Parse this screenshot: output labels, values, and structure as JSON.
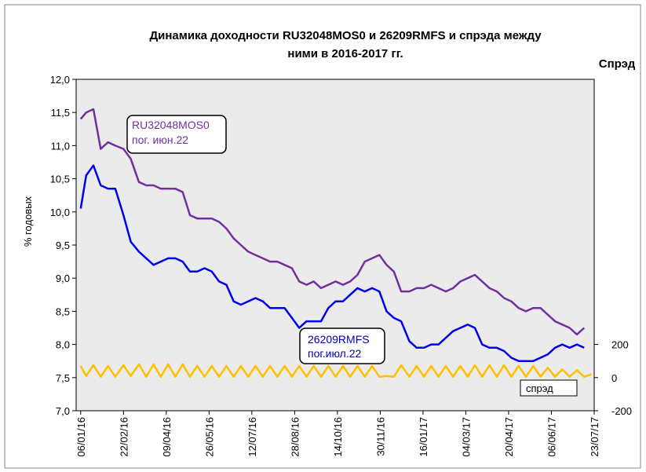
{
  "chart_data": {
    "type": "line",
    "title": [
      "Динамика доходности RU32048MOS0 и 26209RMFS и спрэда между",
      "ними в 2016-2017 гг."
    ],
    "y2_title": "Спрэд",
    "ylabel": "% годовых",
    "x": [
      "2016-01-06",
      "2016-01-12",
      "2016-01-20",
      "2016-01-28",
      "2016-02-05",
      "2016-02-13",
      "2016-02-22",
      "2016-03-01",
      "2016-03-10",
      "2016-03-18",
      "2016-03-26",
      "2016-04-03",
      "2016-04-11",
      "2016-04-19",
      "2016-04-27",
      "2016-05-05",
      "2016-05-13",
      "2016-05-21",
      "2016-05-29",
      "2016-06-06",
      "2016-06-14",
      "2016-06-22",
      "2016-06-30",
      "2016-07-08",
      "2016-07-16",
      "2016-07-24",
      "2016-08-01",
      "2016-08-09",
      "2016-08-17",
      "2016-08-25",
      "2016-09-02",
      "2016-09-10",
      "2016-09-18",
      "2016-09-26",
      "2016-10-04",
      "2016-10-12",
      "2016-10-20",
      "2016-10-28",
      "2016-11-05",
      "2016-11-13",
      "2016-11-21",
      "2016-11-29",
      "2016-12-07",
      "2016-12-15",
      "2016-12-23",
      "2017-01-01",
      "2017-01-09",
      "2017-01-17",
      "2017-01-25",
      "2017-02-02",
      "2017-02-10",
      "2017-02-18",
      "2017-02-26",
      "2017-03-06",
      "2017-03-14",
      "2017-03-22",
      "2017-03-30",
      "2017-04-07",
      "2017-04-15",
      "2017-04-23",
      "2017-05-01",
      "2017-05-09",
      "2017-05-17",
      "2017-05-25",
      "2017-06-02",
      "2017-06-10",
      "2017-06-18",
      "2017-06-26",
      "2017-07-04",
      "2017-07-12",
      "2017-07-20"
    ],
    "series": [
      {
        "name": "RU32048MOS0",
        "annotation": "пог. июн.22",
        "color": "#7030a0",
        "values": [
          11.4,
          11.5,
          11.55,
          10.95,
          11.05,
          11.0,
          10.95,
          10.8,
          10.45,
          10.4,
          10.4,
          10.35,
          10.35,
          10.35,
          10.3,
          9.95,
          9.9,
          9.9,
          9.9,
          9.85,
          9.75,
          9.6,
          9.5,
          9.4,
          9.35,
          9.3,
          9.25,
          9.25,
          9.2,
          9.15,
          8.95,
          8.9,
          8.95,
          8.85,
          8.9,
          8.95,
          8.9,
          8.95,
          9.05,
          9.25,
          9.3,
          9.35,
          9.2,
          9.1,
          8.8,
          8.8,
          8.85,
          8.85,
          8.9,
          8.85,
          8.8,
          8.85,
          8.95,
          9.0,
          9.05,
          8.95,
          8.85,
          8.8,
          8.7,
          8.65,
          8.55,
          8.5,
          8.55,
          8.55,
          8.45,
          8.35,
          8.3,
          8.25,
          8.15,
          8.25,
          null
        ]
      },
      {
        "name": "26209RMFS",
        "annotation": "пог.июл.22",
        "color": "#0000ee",
        "values": [
          10.05,
          10.55,
          10.7,
          10.4,
          10.35,
          10.35,
          9.95,
          9.55,
          9.4,
          9.3,
          9.2,
          9.25,
          9.3,
          9.3,
          9.25,
          9.1,
          9.1,
          9.15,
          9.1,
          8.95,
          8.9,
          8.65,
          8.6,
          8.65,
          8.7,
          8.65,
          8.55,
          8.55,
          8.55,
          8.4,
          8.25,
          8.35,
          8.35,
          8.35,
          8.55,
          8.65,
          8.65,
          8.75,
          8.85,
          8.8,
          8.85,
          8.8,
          8.5,
          8.4,
          8.35,
          8.05,
          7.95,
          7.95,
          8.0,
          8.0,
          8.1,
          8.2,
          8.25,
          8.3,
          8.25,
          8.0,
          7.95,
          7.95,
          7.9,
          7.8,
          7.75,
          7.75,
          7.75,
          7.8,
          7.85,
          7.95,
          8.0,
          7.95,
          8.0,
          7.95,
          null
        ]
      },
      {
        "name": "спрэд",
        "color": "#ffc000",
        "axis": "y2",
        "values": [
          70,
          10,
          75,
          5,
          70,
          5,
          75,
          10,
          80,
          5,
          80,
          5,
          80,
          5,
          80,
          5,
          70,
          5,
          70,
          5,
          70,
          5,
          70,
          5,
          70,
          5,
          70,
          5,
          70,
          5,
          70,
          5,
          70,
          5,
          70,
          5,
          70,
          5,
          70,
          5,
          70,
          5,
          10,
          5,
          75,
          5,
          70,
          5,
          70,
          5,
          70,
          5,
          70,
          5,
          75,
          5,
          75,
          5,
          75,
          5,
          70,
          5,
          70,
          5,
          60,
          5,
          50,
          5,
          45,
          5,
          20
        ]
      }
    ],
    "xlim": [
      "2016-01-01",
      "2017-07-23"
    ],
    "xticks": [
      {
        "value": "2016-01-06",
        "label": "06/01/16"
      },
      {
        "value": "2016-02-22",
        "label": "22/02/16"
      },
      {
        "value": "2016-04-09",
        "label": "09/04/16"
      },
      {
        "value": "2016-05-26",
        "label": "26/05/16"
      },
      {
        "value": "2016-07-12",
        "label": "12/07/16"
      },
      {
        "value": "2016-08-28",
        "label": "28/08/16"
      },
      {
        "value": "2016-10-14",
        "label": "14/10/16"
      },
      {
        "value": "2016-11-30",
        "label": "30/11/16"
      },
      {
        "value": "2017-01-16",
        "label": "16/01/17"
      },
      {
        "value": "2017-03-04",
        "label": "04/03/17"
      },
      {
        "value": "2017-04-20",
        "label": "20/04/17"
      },
      {
        "value": "2017-06-06",
        "label": "06/06/17"
      },
      {
        "value": "2017-07-23",
        "label": "23/07/17"
      }
    ],
    "ylim": [
      7.0,
      12.0
    ],
    "yticks": [
      {
        "value": 7.0,
        "label": "7,0"
      },
      {
        "value": 7.5,
        "label": "7,5"
      },
      {
        "value": 8.0,
        "label": "8,0"
      },
      {
        "value": 8.5,
        "label": "8,5"
      },
      {
        "value": 9.0,
        "label": "9,0"
      },
      {
        "value": 9.5,
        "label": "9,5"
      },
      {
        "value": 10.0,
        "label": "10,0"
      },
      {
        "value": 10.5,
        "label": "10,5"
      },
      {
        "value": 11.0,
        "label": "11,0"
      },
      {
        "value": 11.5,
        "label": "11,5"
      },
      {
        "value": 12.0,
        "label": "12,0"
      }
    ],
    "y2lim": [
      -200,
      1800
    ],
    "y2ticks": [
      -200,
      0,
      200
    ]
  }
}
